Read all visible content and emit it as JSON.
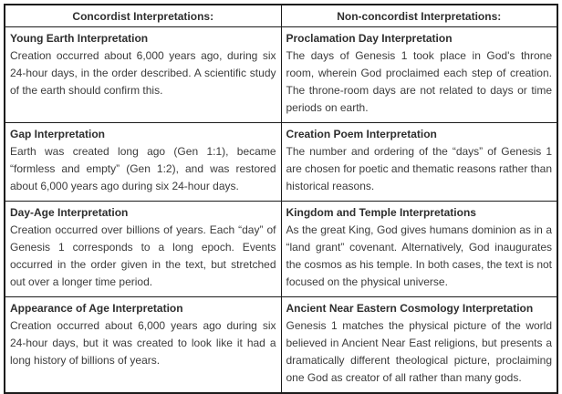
{
  "table": {
    "columns": [
      {
        "header": "Concordist Interpretations:"
      },
      {
        "header": "Non-concordist Interpretations:"
      }
    ],
    "rows": [
      {
        "left": {
          "title": "Young Earth Interpretation",
          "body": "Creation occurred about 6,000 years ago, during six 24-hour days, in the order described. A scientific study of the earth should confirm this."
        },
        "right": {
          "title": "Proclamation Day Interpretation",
          "body": "The days of Genesis 1 took place in God's throne room, wherein God proclaimed each step of creation. The throne-room days are not related to days or time periods on earth."
        }
      },
      {
        "left": {
          "title": "Gap Interpretation",
          "body": "Earth was created long ago (Gen 1:1), became “formless and empty” (Gen 1:2), and was restored about 6,000 years ago during six 24-hour days."
        },
        "right": {
          "title": "Creation Poem Interpretation",
          "body": "The number and ordering of the “days” of Genesis 1 are chosen for poetic and thematic reasons rather than historical reasons."
        }
      },
      {
        "left": {
          "title": "Day-Age Interpretation",
          "body": "Creation occurred over billions of years. Each “day” of Genesis 1 corresponds to a long epoch. Events occurred in the order given in the text, but stretched out over a longer time period."
        },
        "right": {
          "title": "Kingdom and Temple Interpretations",
          "body": "As the great King, God gives humans dominion as in a “land grant” covenant. Alternatively, God inaugurates the cosmos as his temple. In both cases, the text is not focused on the physical universe."
        }
      },
      {
        "left": {
          "title": "Appearance of Age Interpretation",
          "body": "Creation occurred about 6,000 years ago during six 24-hour days, but it was created to look like it had a long history of billions of years."
        },
        "right": {
          "title": "Ancient Near Eastern Cosmology Interpretation",
          "body": "Genesis 1 matches the physical picture of the world believed in Ancient Near East religions, but presents a dramatically different theological picture, proclaiming one God as creator of all rather than many gods."
        }
      }
    ]
  },
  "colors": {
    "text": "#3b3b3b",
    "border": "#1c1c1c",
    "background": "#ffffff"
  }
}
